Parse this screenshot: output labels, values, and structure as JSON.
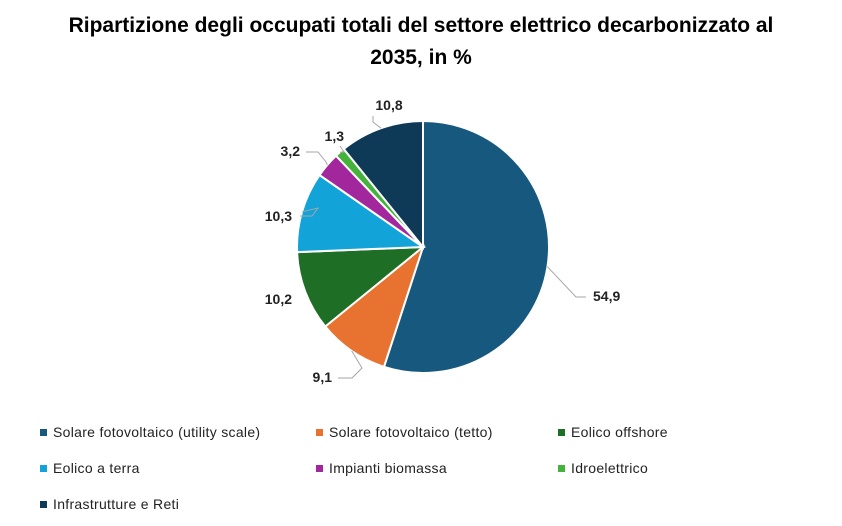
{
  "chart_data": {
    "type": "pie",
    "title_lines": [
      "Ripartizione degli occupati totali del settore elettrico decarbonizzato al",
      "2035, in %"
    ],
    "categories": [
      "Solare fotovoltaico (utility scale)",
      "Solare fotovoltaico (tetto)",
      "Eolico offshore",
      "Eolico a terra",
      "Impianti biomassa",
      "Idroelettrico",
      "Infrastrutture e Reti"
    ],
    "values": [
      54.9,
      9.1,
      10.2,
      10.3,
      3.2,
      1.3,
      10.8
    ],
    "data_labels": [
      "54,9",
      "9,1",
      "10,2",
      "10,3",
      "3,2",
      "1,3",
      "10,8"
    ],
    "colors": [
      "#17587f",
      "#e8722f",
      "#1e6e25",
      "#12a3d9",
      "#a3279c",
      "#45b23c",
      "#0f3a57"
    ],
    "legend_position": "bottom"
  }
}
